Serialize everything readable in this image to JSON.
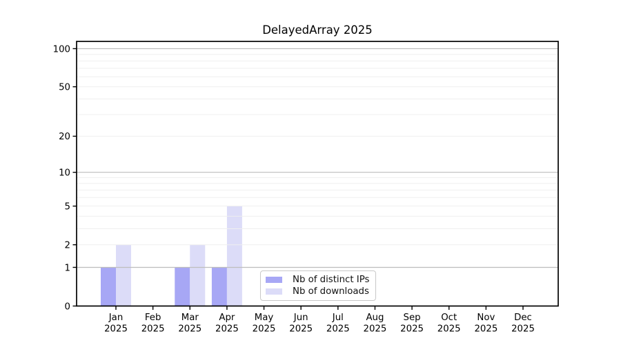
{
  "chart_data": {
    "type": "bar",
    "title": "DelayedArray 2025",
    "x_tick_months": [
      "Jan",
      "Feb",
      "Mar",
      "Apr",
      "May",
      "Jun",
      "Jul",
      "Aug",
      "Sep",
      "Oct",
      "Nov",
      "Dec"
    ],
    "x_tick_year": "2025",
    "series": [
      {
        "name": "Nb of distinct IPs",
        "color": "#a7a7f5",
        "values": [
          1,
          0,
          1,
          1,
          0,
          0,
          0,
          0,
          0,
          0,
          0,
          0
        ]
      },
      {
        "name": "Nb of downloads",
        "color": "#dcdcf8",
        "values": [
          2,
          0,
          2,
          5,
          0,
          0,
          0,
          0,
          0,
          0,
          0,
          0
        ]
      }
    ],
    "y_ticks": [
      0,
      1,
      2,
      5,
      10,
      20,
      50,
      100
    ],
    "y_gridlines_major": [
      1,
      10,
      100
    ],
    "y_gridlines_minor": [
      2,
      3,
      4,
      5,
      6,
      7,
      8,
      9,
      20,
      30,
      40,
      50,
      60,
      70,
      80,
      90
    ],
    "y_scale": "log10(1+v)",
    "ylim": [
      0,
      114
    ],
    "grid": "horizontal",
    "legend_position": "lower center"
  },
  "colors": {
    "grid_major": "#bdbdbd",
    "grid_minor": "#efefef",
    "axis": "#000000",
    "text": "#000000",
    "legend_border": "#c8c8c8",
    "background": "#ffffff"
  }
}
